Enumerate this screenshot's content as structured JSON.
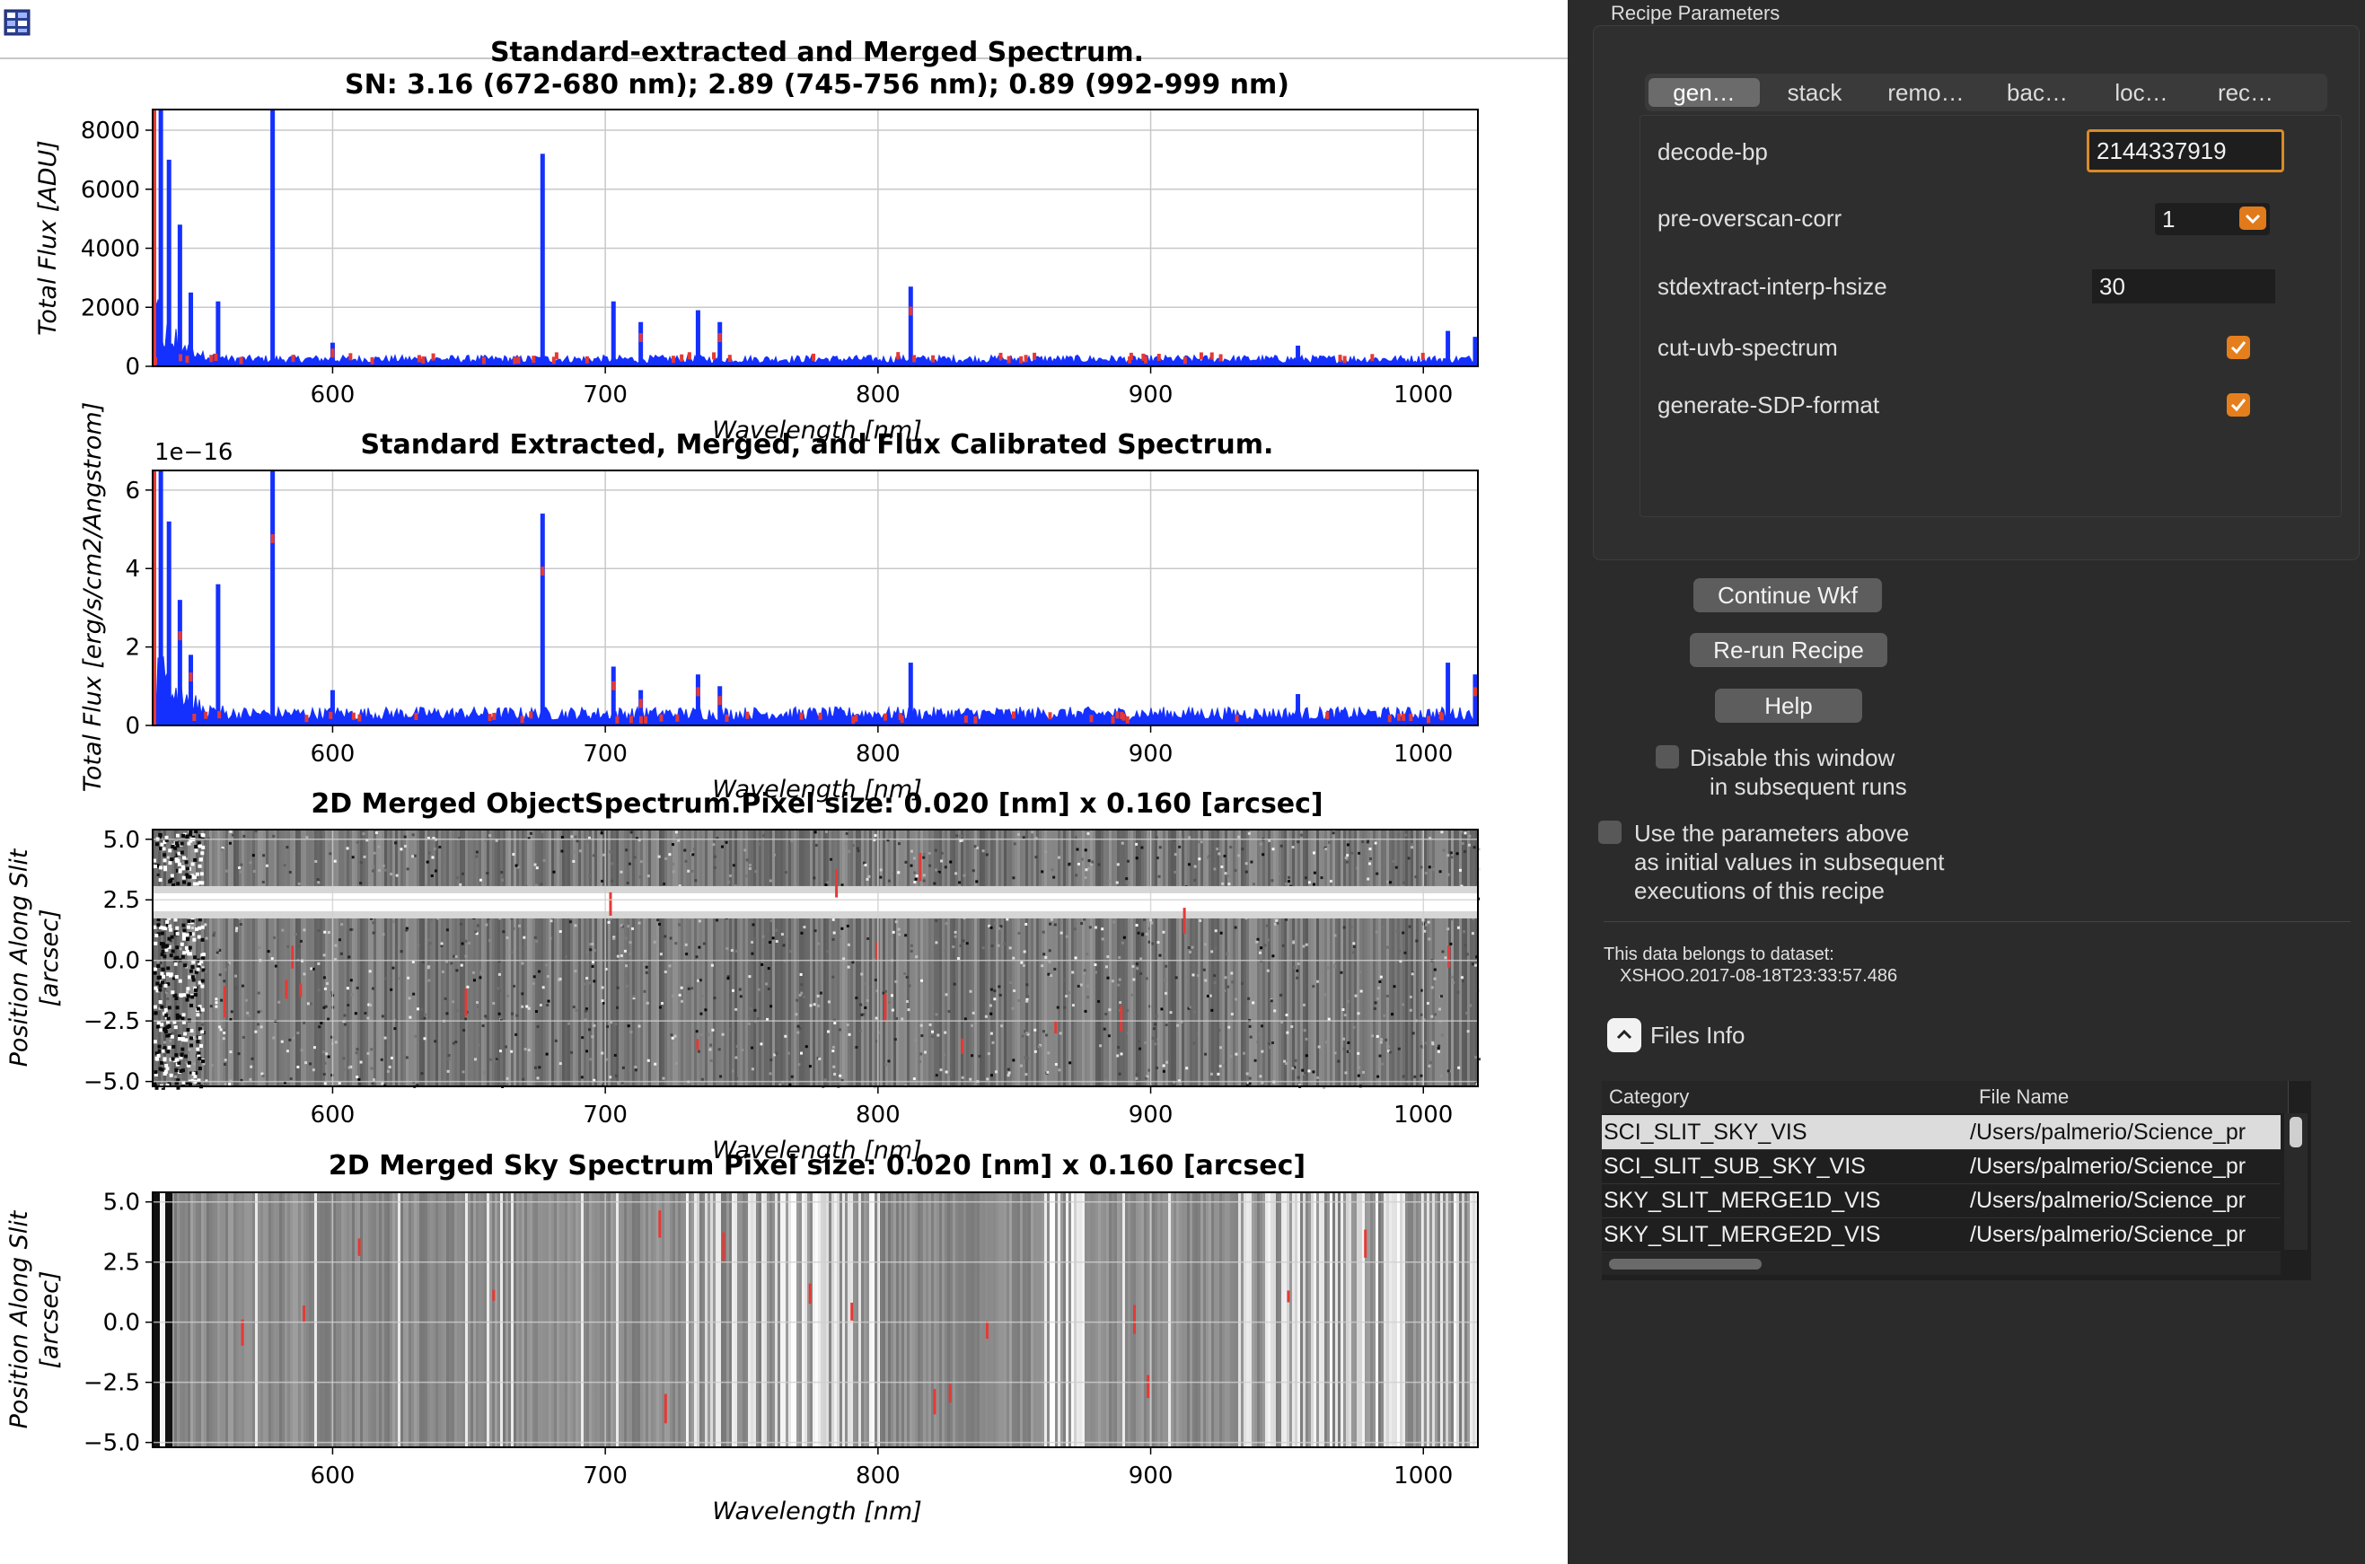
{
  "window": {
    "app_icon": "table-grid-icon"
  },
  "plots": {
    "top": {
      "title_line1": "Standard-extracted and Merged Spectrum.",
      "title_line2": "SN: 3.16 (672-680 nm); 2.89 (745-756 nm); 0.89 (992-999 nm)",
      "ylabel": "Total Flux [ADU]",
      "xlabel": "Wavelength [nm]",
      "yticks": [
        "0",
        "2000",
        "4000",
        "6000",
        "8000"
      ]
    },
    "fluxcal": {
      "title": "Standard Extracted, Merged, and Flux Calibrated Spectrum.",
      "ylabel": "Total Flux [erg/s/cm2/Angstrom]",
      "xlabel": "Wavelength [nm]",
      "offset_label": "1e−16",
      "yticks": [
        "0",
        "2",
        "4",
        "6"
      ]
    },
    "obj2d": {
      "title": "2D Merged ObjectSpectrum.Pixel size: 0.020 [nm] x 0.160 [arcsec]",
      "ylabel_line1": "Position Along Slit",
      "ylabel_line2": "[arcsec]",
      "xlabel": "Wavelength [nm]",
      "yticks": [
        "5.0",
        "2.5",
        "0.0",
        "−2.5",
        "−5.0"
      ]
    },
    "sky2d": {
      "title": "2D Merged Sky Spectrum Pixel size: 0.020 [nm] x 0.160 [arcsec]",
      "ylabel_line1": "Position Along Slit",
      "ylabel_line2": "[arcsec]",
      "xlabel": "Wavelength [nm]",
      "yticks": [
        "5.0",
        "2.5",
        "0.0",
        "−2.5",
        "−5.0"
      ]
    },
    "xticks": [
      "600",
      "700",
      "800",
      "900",
      "1000"
    ],
    "colors": {
      "spectrum": "#1430ff",
      "flagged": "#e53935"
    }
  },
  "chart_data": [
    {
      "type": "line",
      "title": "Standard-extracted and Merged Spectrum.",
      "subtitle": "SN: 3.16 (672-680 nm); 2.89 (745-756 nm); 0.89 (992-999 nm)",
      "xlabel": "Wavelength [nm]",
      "ylabel": "Total Flux [ADU]",
      "xlim": [
        534,
        1020
      ],
      "ylim": [
        0,
        8700
      ],
      "grid": true,
      "continuum": 200,
      "peaks": [
        {
          "x": 537,
          "y": 8700
        },
        {
          "x": 540,
          "y": 7000
        },
        {
          "x": 544,
          "y": 4800
        },
        {
          "x": 548,
          "y": 2500
        },
        {
          "x": 558,
          "y": 2200
        },
        {
          "x": 578,
          "y": 8700
        },
        {
          "x": 600,
          "y": 800
        },
        {
          "x": 677,
          "y": 7200
        },
        {
          "x": 703,
          "y": 2200
        },
        {
          "x": 713,
          "y": 1500
        },
        {
          "x": 734,
          "y": 1900
        },
        {
          "x": 742,
          "y": 1500
        },
        {
          "x": 812,
          "y": 2700
        },
        {
          "x": 954,
          "y": 700
        },
        {
          "x": 1009,
          "y": 1200
        },
        {
          "x": 1019,
          "y": 1000
        }
      ]
    },
    {
      "type": "line",
      "title": "Standard Extracted, Merged, and Flux Calibrated Spectrum.",
      "xlabel": "Wavelength [nm]",
      "ylabel": "Total Flux [erg/s/cm2/Angstrom]",
      "xlim": [
        534,
        1020
      ],
      "ylim": [
        0,
        6.5
      ],
      "y_scale_factor": "1e-16",
      "grid": true,
      "continuum": 0.25,
      "peaks": [
        {
          "x": 537,
          "y": 6.5
        },
        {
          "x": 540,
          "y": 5.2
        },
        {
          "x": 544,
          "y": 3.2
        },
        {
          "x": 548,
          "y": 1.8
        },
        {
          "x": 558,
          "y": 3.6
        },
        {
          "x": 578,
          "y": 6.5
        },
        {
          "x": 600,
          "y": 0.9
        },
        {
          "x": 677,
          "y": 5.4
        },
        {
          "x": 703,
          "y": 1.5
        },
        {
          "x": 713,
          "y": 0.9
        },
        {
          "x": 734,
          "y": 1.3
        },
        {
          "x": 742,
          "y": 1.0
        },
        {
          "x": 812,
          "y": 1.6
        },
        {
          "x": 954,
          "y": 0.8
        },
        {
          "x": 1009,
          "y": 1.6
        },
        {
          "x": 1019,
          "y": 1.3
        }
      ]
    },
    {
      "type": "heatmap",
      "title": "2D Merged ObjectSpectrum.Pixel size: 0.020 [nm] x 0.160 [arcsec]",
      "xlabel": "Wavelength [nm]",
      "ylabel": "Position Along Slit [arcsec]",
      "xlim": [
        534,
        1020
      ],
      "ylim": [
        -5.2,
        5.4
      ],
      "trace_position": 2.4,
      "grid": true
    },
    {
      "type": "heatmap",
      "title": "2D Merged Sky Spectrum Pixel size: 0.020 [nm] x 0.160 [arcsec]",
      "xlabel": "Wavelength [nm]",
      "ylabel": "Position Along Slit [arcsec]",
      "xlim": [
        534,
        1020
      ],
      "ylim": [
        -5.2,
        5.4
      ],
      "grid": true
    }
  ],
  "panel": {
    "title": "Recipe Parameters",
    "tabs": [
      "gen…",
      "stack",
      "remo…",
      "bac…",
      "loc…",
      "rec…"
    ],
    "params": {
      "decode_bp": {
        "label": "decode-bp",
        "value": "2144337919"
      },
      "pre_overscan_corr": {
        "label": "pre-overscan-corr",
        "value": "1"
      },
      "stdextract_interp_hsize": {
        "label": "stdextract-interp-hsize",
        "value": "30"
      },
      "cut_uvb_spectrum": {
        "label": "cut-uvb-spectrum",
        "checked": true
      },
      "generate_sdp_format": {
        "label": "generate-SDP-format",
        "checked": true
      }
    },
    "buttons": {
      "continue": "Continue Wkf",
      "rerun": "Re-run Recipe",
      "help": "Help"
    },
    "disable_window": {
      "line1": "Disable this window",
      "line2": "in subsequent runs"
    },
    "use_params": {
      "line1": "Use the parameters above",
      "line2": "as initial values in subsequent",
      "line3": "executions of this recipe"
    },
    "dataset": {
      "label": "This data belongs to dataset:",
      "value": "XSHOO.2017-08-18T23:33:57.486"
    },
    "files_info": {
      "label": "Files Info",
      "columns": [
        "Category",
        "File Name"
      ],
      "rows": [
        {
          "category": "SCI_SLIT_SKY_VIS",
          "file": "/Users/palmerio/Science_pr"
        },
        {
          "category": "SCI_SLIT_SUB_SKY_VIS",
          "file": "/Users/palmerio/Science_pr"
        },
        {
          "category": "SKY_SLIT_MERGE1D_VIS",
          "file": "/Users/palmerio/Science_pr"
        },
        {
          "category": "SKY_SLIT_MERGE2D_VIS",
          "file": "/Users/palmerio/Science_pr"
        }
      ]
    }
  }
}
